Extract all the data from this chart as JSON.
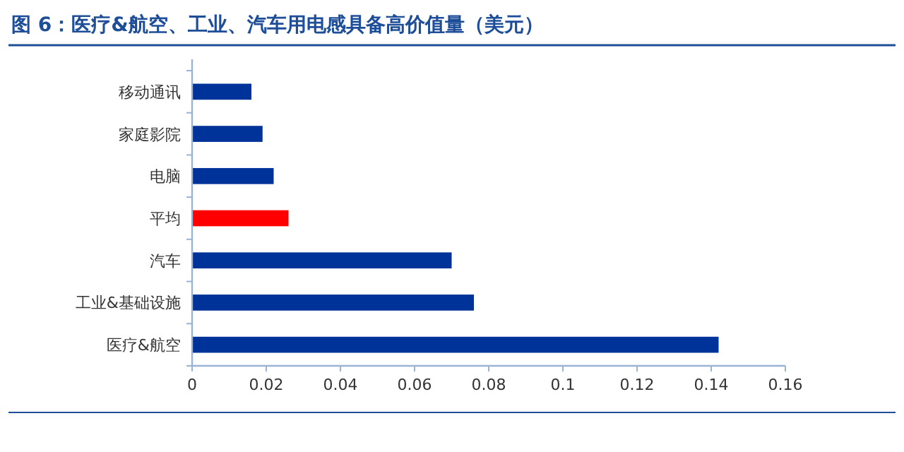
{
  "chart_data": {
    "type": "bar",
    "orientation": "horizontal",
    "title": "图 6：医疗&航空、工业、汽车用电感具备高价值量（美元）",
    "categories": [
      "移动通讯",
      "家庭影院",
      "电脑",
      "平均",
      "汽车",
      "工业&基础设施",
      "医疗&航空"
    ],
    "values": [
      0.016,
      0.019,
      0.022,
      0.026,
      0.07,
      0.076,
      0.142
    ],
    "colors": [
      "#003399",
      "#003399",
      "#003399",
      "#ff0000",
      "#003399",
      "#003399",
      "#003399"
    ],
    "xlim": [
      0,
      0.16
    ],
    "xticks": [
      0,
      0.02,
      0.04,
      0.06,
      0.08,
      0.1,
      0.12,
      0.14,
      0.16
    ],
    "grid": false
  }
}
